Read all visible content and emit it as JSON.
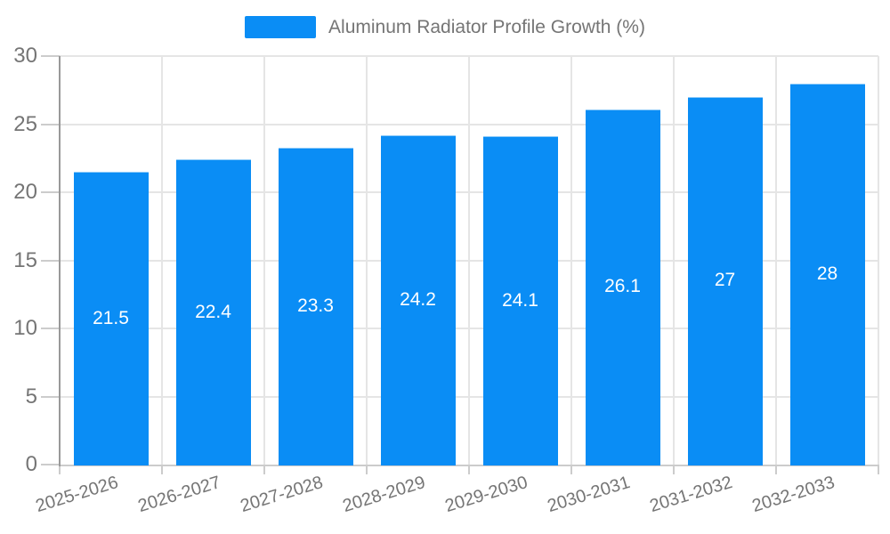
{
  "chart_data": {
    "type": "bar",
    "title": "Aluminum Radiator Profile Growth (%)",
    "legend_position": "top-center",
    "categories": [
      "2025-2026",
      "2026-2027",
      "2027-2028",
      "2028-2029",
      "2029-2030",
      "2030-2031",
      "2031-2032",
      "2032-2033"
    ],
    "values": [
      21.5,
      22.4,
      23.3,
      24.2,
      24.1,
      26.1,
      27,
      28
    ],
    "xlabel": "",
    "ylabel": "",
    "ylim": [
      0,
      30
    ],
    "yticks": [
      0,
      5,
      10,
      15,
      20,
      25,
      30
    ],
    "grid": true,
    "value_labels_inside_bars": true,
    "colors": {
      "bar": "#0a8df5",
      "bar_top_edge": "#8ecbf9",
      "grid": "#e5e5e5",
      "axis_line": "#999999",
      "tick": "#cccccc",
      "label": "#757575",
      "value_text": "#ffffff",
      "background": "#ffffff"
    }
  }
}
